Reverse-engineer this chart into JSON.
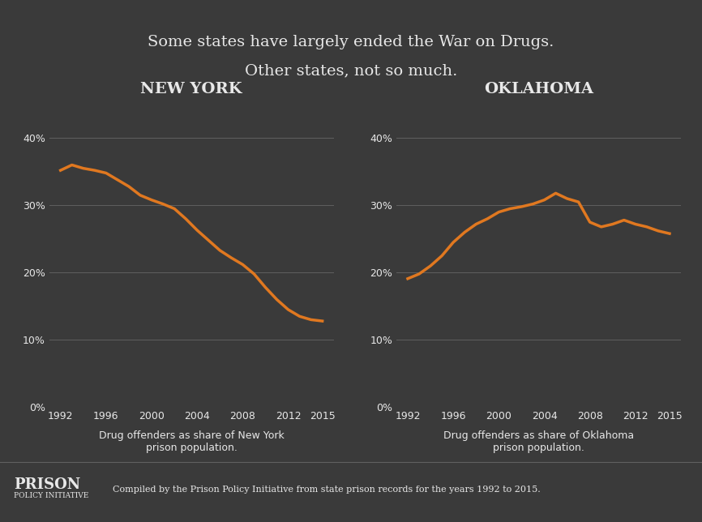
{
  "title_line1": "Some states have largely ended the War on Drugs.",
  "title_line2": "Other states, not so much.",
  "bg_color": "#3a3a3a",
  "text_color": "#e8e8e8",
  "line_color": "#e07820",
  "grid_color": "#606060",
  "subplot_titles": [
    "NEW YORK",
    "OKLAHOMA"
  ],
  "xlabel_ny": "Drug offenders as share of New York\nprison population.",
  "xlabel_ok": "Drug offenders as share of Oklahoma\nprison population.",
  "footer_text": "Compiled by the Prison Policy Initiative from state prison records for the years 1992 to 2015.",
  "ny_years": [
    1992,
    1993,
    1994,
    1995,
    1996,
    1997,
    1998,
    1999,
    2000,
    2001,
    2002,
    2003,
    2004,
    2005,
    2006,
    2007,
    2008,
    2009,
    2010,
    2011,
    2012,
    2013,
    2014,
    2015
  ],
  "ny_values": [
    0.352,
    0.36,
    0.355,
    0.352,
    0.348,
    0.338,
    0.328,
    0.315,
    0.308,
    0.302,
    0.295,
    0.28,
    0.263,
    0.248,
    0.233,
    0.222,
    0.212,
    0.198,
    0.178,
    0.16,
    0.145,
    0.135,
    0.13,
    0.128
  ],
  "ok_years": [
    1992,
    1993,
    1994,
    1995,
    1996,
    1997,
    1998,
    1999,
    2000,
    2001,
    2002,
    2003,
    2004,
    2005,
    2006,
    2007,
    2008,
    2009,
    2010,
    2011,
    2012,
    2013,
    2014,
    2015
  ],
  "ok_values": [
    0.191,
    0.198,
    0.21,
    0.225,
    0.245,
    0.26,
    0.272,
    0.28,
    0.29,
    0.295,
    0.298,
    0.302,
    0.308,
    0.318,
    0.31,
    0.305,
    0.275,
    0.268,
    0.272,
    0.278,
    0.272,
    0.268,
    0.262,
    0.258
  ],
  "yticks": [
    0.0,
    0.1,
    0.2,
    0.3,
    0.4
  ],
  "ytick_labels": [
    "0%",
    "10%",
    "20%",
    "30%",
    "40%"
  ],
  "xticks": [
    1992,
    1996,
    2000,
    2004,
    2008,
    2012,
    2015
  ],
  "ylim": [
    0.0,
    0.45
  ],
  "line_width": 2.5
}
